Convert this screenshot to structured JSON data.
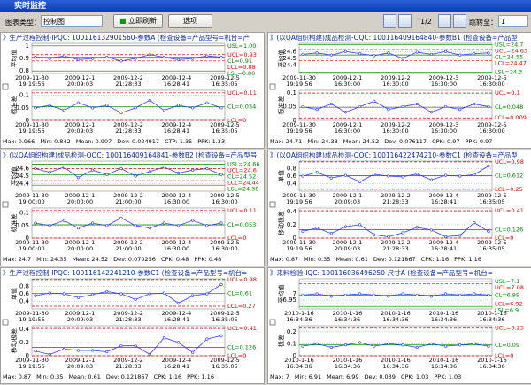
{
  "window": {
    "title": "实时监控"
  },
  "toolbar": {
    "chart_type_label": "图表类型：",
    "chart_type": "控制图",
    "refresh": "立即刷新",
    "options": "选项",
    "page": "1/2",
    "jump_label": "跳转至：",
    "jump_value": "1"
  },
  "line_color": "#2a3cf0",
  "panels": [
    {
      "title": "》生产过程控制-IPQC: 100116132901560-参数A  (检查设备=产品型号=机台=产",
      "xlabels": [
        [
          "2009-11-30",
          "19:19:56"
        ],
        [
          "2009-12-1",
          "20:09:03"
        ],
        [
          "2009-12-2",
          "21:28:33"
        ],
        [
          "2009-12-4",
          "16:28:41"
        ],
        [
          "2009-12-5",
          "16:35:05"
        ]
      ],
      "charts": [
        {
          "ylabel": "平均值",
          "ylim": [
            0.78,
            1.02
          ],
          "yticks": [
            0.8,
            0.9,
            1
          ],
          "values": [
            0.91,
            0.9,
            0.92,
            0.89,
            0.9,
            0.91,
            0.88,
            0.9,
            0.93,
            0.91,
            0.89,
            0.9,
            0.92,
            0.91
          ],
          "limits": [
            {
              "label": "USL=1.00",
              "value": 1,
              "color": "#008000"
            },
            {
              "label": "UCL=0.93",
              "value": 0.93,
              "color": "#e00000"
            },
            {
              "label": "CL=0.91",
              "value": 0.91,
              "color": "#008000"
            },
            {
              "label": "LCL=0.88",
              "value": 0.88,
              "color": "#e00000"
            },
            {
              "label": "LSL=0.80",
              "value": 0.8,
              "color": "#008000"
            }
          ]
        },
        {
          "ylabel": "标准差",
          "ylim": [
            0,
            0.12
          ],
          "yticks": [
            0,
            0.05,
            0.1
          ],
          "values": [
            0.05,
            0.06,
            0.04,
            0.07,
            0.05,
            0.06,
            0.03,
            0.05,
            0.08,
            0.04,
            0.06,
            0.05,
            0.07,
            0.05
          ],
          "limits": [
            {
              "label": "UCL=0.11",
              "value": 0.11,
              "color": "#e00000"
            },
            {
              "label": "CL=0.054",
              "value": 0.054,
              "color": "#008000"
            },
            {
              "label": "LCL=0",
              "value": 0,
              "color": "#e00000"
            }
          ]
        }
      ],
      "stats": [
        "Max: 0.966",
        "Min: 0.842",
        "Mean: 0.907",
        "Dev: 0.024917",
        "CTP: 1.35",
        "PPK: 1.33"
      ]
    },
    {
      "title": "》(以QA组织构建)成品检测-OQC: 100116409164840-参数B1  (检查设备=产品型",
      "xlabels": [
        [
          "2009-11-30",
          "19:19:56"
        ],
        [
          "2009-12-1",
          "16:30:00"
        ],
        [
          "2009-12-2",
          "16:30:00"
        ],
        [
          "2009-12-3",
          "16:30:00"
        ],
        [
          "2009-12-5",
          "16:30:00"
        ]
      ],
      "charts": [
        {
          "ylabel": "平均值",
          "ylim": [
            24.28,
            24.72
          ],
          "yticks": [
            24.4,
            24.5,
            24.6
          ],
          "values": [
            24.56,
            24.58,
            24.55,
            24.6,
            24.57,
            24.54,
            24.58,
            24.5,
            24.59,
            24.56,
            24.6,
            24.55,
            24.57,
            24.58
          ],
          "limits": [
            {
              "label": "USL=24.7",
              "value": 24.7,
              "color": "#008000"
            },
            {
              "label": "UCL=24.63",
              "value": 24.63,
              "color": "#e00000"
            },
            {
              "label": "CL=24.55",
              "value": 24.55,
              "color": "#008000"
            },
            {
              "label": "LCL=24.47",
              "value": 24.47,
              "color": "#e00000"
            },
            {
              "label": "LSL=24.3",
              "value": 24.3,
              "color": "#008000"
            }
          ]
        },
        {
          "ylabel": "标准差",
          "ylim": [
            0,
            0.11
          ],
          "yticks": [
            0,
            0.05,
            0.1
          ],
          "values": [
            0.05,
            0.04,
            0.06,
            0.03,
            0.05,
            0.07,
            0.04,
            0.05,
            0.06,
            0.03,
            0.05,
            0.04,
            0.06,
            0.05
          ],
          "limits": [
            {
              "label": "UCL=0.1",
              "value": 0.1,
              "color": "#e00000"
            },
            {
              "label": "CL=0.048",
              "value": 0.048,
              "color": "#008000"
            },
            {
              "label": "LCL=0.009",
              "value": 0.009,
              "color": "#e00000"
            }
          ]
        }
      ],
      "stats": [
        "Max: 24.71",
        "Min: 24.38",
        "Mean: 24.52",
        "Dev: 0.076117",
        "CPK: 0.97",
        "PPK: 0.97"
      ]
    },
    {
      "title": "》(以QA组织构建)成品检测-OQC: 100116409164841-参数B2  (检查设备=产品型号",
      "xlabels": [
        [
          "2009-11-30",
          "19:00:00"
        ],
        [
          "2009-12-1",
          "20:00:00"
        ],
        [
          "2009-12-2",
          "21:00:00"
        ],
        [
          "2009-12-4",
          "16:30:00"
        ],
        [
          "2009-12-5",
          "16:30:00"
        ]
      ],
      "charts": [
        {
          "ylabel": "平均值",
          "ylim": [
            24.3,
            24.7
          ],
          "yticks": [
            24.4,
            24.5,
            24.6
          ],
          "values": [
            24.6,
            24.55,
            24.62,
            24.48,
            24.58,
            24.52,
            24.6,
            24.5,
            24.56,
            24.62,
            24.54,
            24.58,
            24.6,
            24.52
          ],
          "limits": [
            {
              "label": "USL=24.66",
              "value": 24.66,
              "color": "#008000"
            },
            {
              "label": "UCL=24.6",
              "value": 24.6,
              "color": "#e00000"
            },
            {
              "label": "CL=24.52",
              "value": 24.52,
              "color": "#008000"
            },
            {
              "label": "LCL=24.44",
              "value": 24.44,
              "color": "#e00000"
            },
            {
              "label": "LSL=24.38",
              "value": 24.38,
              "color": "#008000"
            }
          ]
        },
        {
          "ylabel": "标准差",
          "ylim": [
            0,
            0.12
          ],
          "yticks": [
            0,
            0.05,
            0.1
          ],
          "values": [
            0.06,
            0.05,
            0.07,
            0.04,
            0.06,
            0.05,
            0.08,
            0.05,
            0.04,
            0.06,
            0.05,
            0.07,
            0.05,
            0.06
          ],
          "limits": [
            {
              "label": "UCL=0.11",
              "value": 0.11,
              "color": "#e00000"
            },
            {
              "label": "CL=0.053",
              "value": 0.053,
              "color": "#008000"
            },
            {
              "label": "LCL=0",
              "value": 0,
              "color": "#e00000"
            }
          ]
        }
      ],
      "stats": [
        "Max: 24.7",
        "Min: 24.35",
        "Mean: 24.52",
        "Dev: 0.070256",
        "CPK: 0.48",
        "PPK: 0.48"
      ]
    },
    {
      "title": "》(以QA组织构建)成品检测-OQC: 100116422474210-参数C1  (检查设备=产品型",
      "xlabels": [
        [
          "2009-11-30",
          "19:19:56"
        ],
        [
          "2009-12-1",
          "20:09:03"
        ],
        [
          "2009-12-2",
          "21:28:33"
        ],
        [
          "2009-12-4",
          "16:28:41"
        ],
        [
          "2009-12-5",
          "16:35:05"
        ]
      ],
      "charts": [
        {
          "ylabel": "单值",
          "ylim": [
            0.2,
            1.0
          ],
          "yticks": [
            0.4,
            0.6,
            0.8
          ],
          "values": [
            0.6,
            0.7,
            0.55,
            0.62,
            0.45,
            0.65,
            0.6,
            0.58,
            0.66,
            0.5,
            0.62,
            0.6,
            0.64,
            0.87
          ],
          "limits": [
            {
              "label": "UCL=0.98",
              "value": 0.98,
              "color": "#e00000"
            },
            {
              "label": "CL=0.612",
              "value": 0.612,
              "color": "#008000"
            },
            {
              "label": "LCL=0.25",
              "value": 0.25,
              "color": "#e00000"
            }
          ]
        },
        {
          "ylabel": "移动极差",
          "ylim": [
            0,
            0.45
          ],
          "yticks": [
            0,
            0.2,
            0.4
          ],
          "values": [
            0.1,
            0.15,
            0.07,
            0.17,
            0.2,
            0.05,
            0.02,
            0.08,
            0.16,
            0.12,
            0.02,
            0.04,
            0.23,
            0.1
          ],
          "limits": [
            {
              "label": "UCL=0.41",
              "value": 0.41,
              "color": "#e00000"
            },
            {
              "label": "CL=0.126",
              "value": 0.126,
              "color": "#008000"
            },
            {
              "label": "LCL=0",
              "value": 0,
              "color": "#e00000"
            }
          ]
        }
      ],
      "stats": [
        "Max: 0.87",
        "Min: 0.35",
        "Mean: 0.61",
        "Dev: 0.121867",
        "CPK: 1.16",
        "PPK: 1.16"
      ]
    },
    {
      "title": "》生产过程控制-IPQC: 100116142241210-参数C1  (检查设备=产品型号=机台=",
      "xlabels": [
        [
          "2009-11-30",
          "19:19:56"
        ],
        [
          "2009-12-1",
          "20:09:03"
        ],
        [
          "2009-12-2",
          "21:28:33"
        ],
        [
          "2009-12-4",
          "16:28:41"
        ],
        [
          "2009-12-5",
          "16:35:05"
        ]
      ],
      "charts": [
        {
          "ylabel": "单值",
          "ylim": [
            0.2,
            1.0
          ],
          "yticks": [
            0.4,
            0.6,
            0.8
          ],
          "values": [
            0.55,
            0.62,
            0.6,
            0.5,
            0.58,
            0.66,
            0.6,
            0.45,
            0.6,
            0.62,
            0.35,
            0.55,
            0.6,
            0.85
          ],
          "limits": [
            {
              "label": "UCL=0.98",
              "value": 0.98,
              "color": "#e00000"
            },
            {
              "label": "CL=0.61",
              "value": 0.61,
              "color": "#008000"
            },
            {
              "label": "LCL=0.27",
              "value": 0.27,
              "color": "#e00000"
            }
          ]
        },
        {
          "ylabel": "移动极差",
          "ylim": [
            0,
            0.45
          ],
          "yticks": [
            0,
            0.2,
            0.4
          ],
          "values": [
            0.07,
            0.02,
            0.1,
            0.08,
            0.08,
            0.06,
            0.15,
            0.15,
            0.02,
            0.27,
            0.2,
            0.05,
            0.25,
            0.3
          ],
          "limits": [
            {
              "label": "UCL=0.41",
              "value": 0.41,
              "color": "#e00000"
            },
            {
              "label": "CL=0.126",
              "value": 0.126,
              "color": "#008000"
            },
            {
              "label": "LCL=0",
              "value": 0,
              "color": "#e00000"
            }
          ]
        }
      ],
      "stats": [
        "Max: 0.87",
        "Min: 0.35",
        "Mean: 0.61",
        "Dev: 0.121867",
        "CPK: 1.16",
        "PPK: 1.16"
      ]
    },
    {
      "title": "》来料检验-IQC: 100116036496250-尺寸A  (检查设备=产品型号=机台=",
      "xlabels": [
        [
          "2010-1-16",
          "16:34:36"
        ],
        [
          "2010-1-16",
          "16:34:36"
        ],
        [
          "2010-1-16",
          "16:34:36"
        ],
        [
          "2010-1-16",
          "16:34:36"
        ],
        [
          "2010-1-16",
          "16:34:36"
        ]
      ],
      "charts": [
        {
          "ylabel": "平均值",
          "ylim": [
            6.88,
            7.12
          ],
          "yticks": [
            6.95,
            7
          ],
          "values": [
            6.99,
            7.0,
            6.98,
            6.99,
            7.0,
            6.99,
            6.98,
            7.0,
            6.99,
            6.98,
            7.0,
            6.99,
            7.0,
            6.99
          ],
          "limits": [
            {
              "label": "USL=7.1",
              "value": 7.1,
              "color": "#008000"
            },
            {
              "label": "UCL=7.08",
              "value": 7.08,
              "color": "#e00000"
            },
            {
              "label": "CL=6.99",
              "value": 6.99,
              "color": "#008000"
            },
            {
              "label": "LCL=6.92",
              "value": 6.92,
              "color": "#e00000"
            },
            {
              "label": "LSL=6.9",
              "value": 6.9,
              "color": "#008000"
            }
          ]
        },
        {
          "ylabel": "极差",
          "ylim": [
            0,
            0.25
          ],
          "yticks": [
            0,
            0.1,
            0.2
          ],
          "values": [
            0.08,
            0.1,
            0.07,
            0.09,
            0.11,
            0.08,
            0.1,
            0.09,
            0.07,
            0.1,
            0.08,
            0.09,
            0.1,
            0.08
          ],
          "limits": [
            {
              "label": "UCL=0.23",
              "value": 0.23,
              "color": "#e00000"
            },
            {
              "label": "CL=0.09",
              "value": 0.09,
              "color": "#008000"
            },
            {
              "label": "LCL=0",
              "value": 0,
              "color": "#e00000"
            }
          ]
        }
      ],
      "stats": [
        "Max: 7",
        "Min: 6.91",
        "Mean: 6.99",
        "Dev: 0.039",
        "CPK: 1.03",
        "PPK: 1.03"
      ]
    }
  ]
}
